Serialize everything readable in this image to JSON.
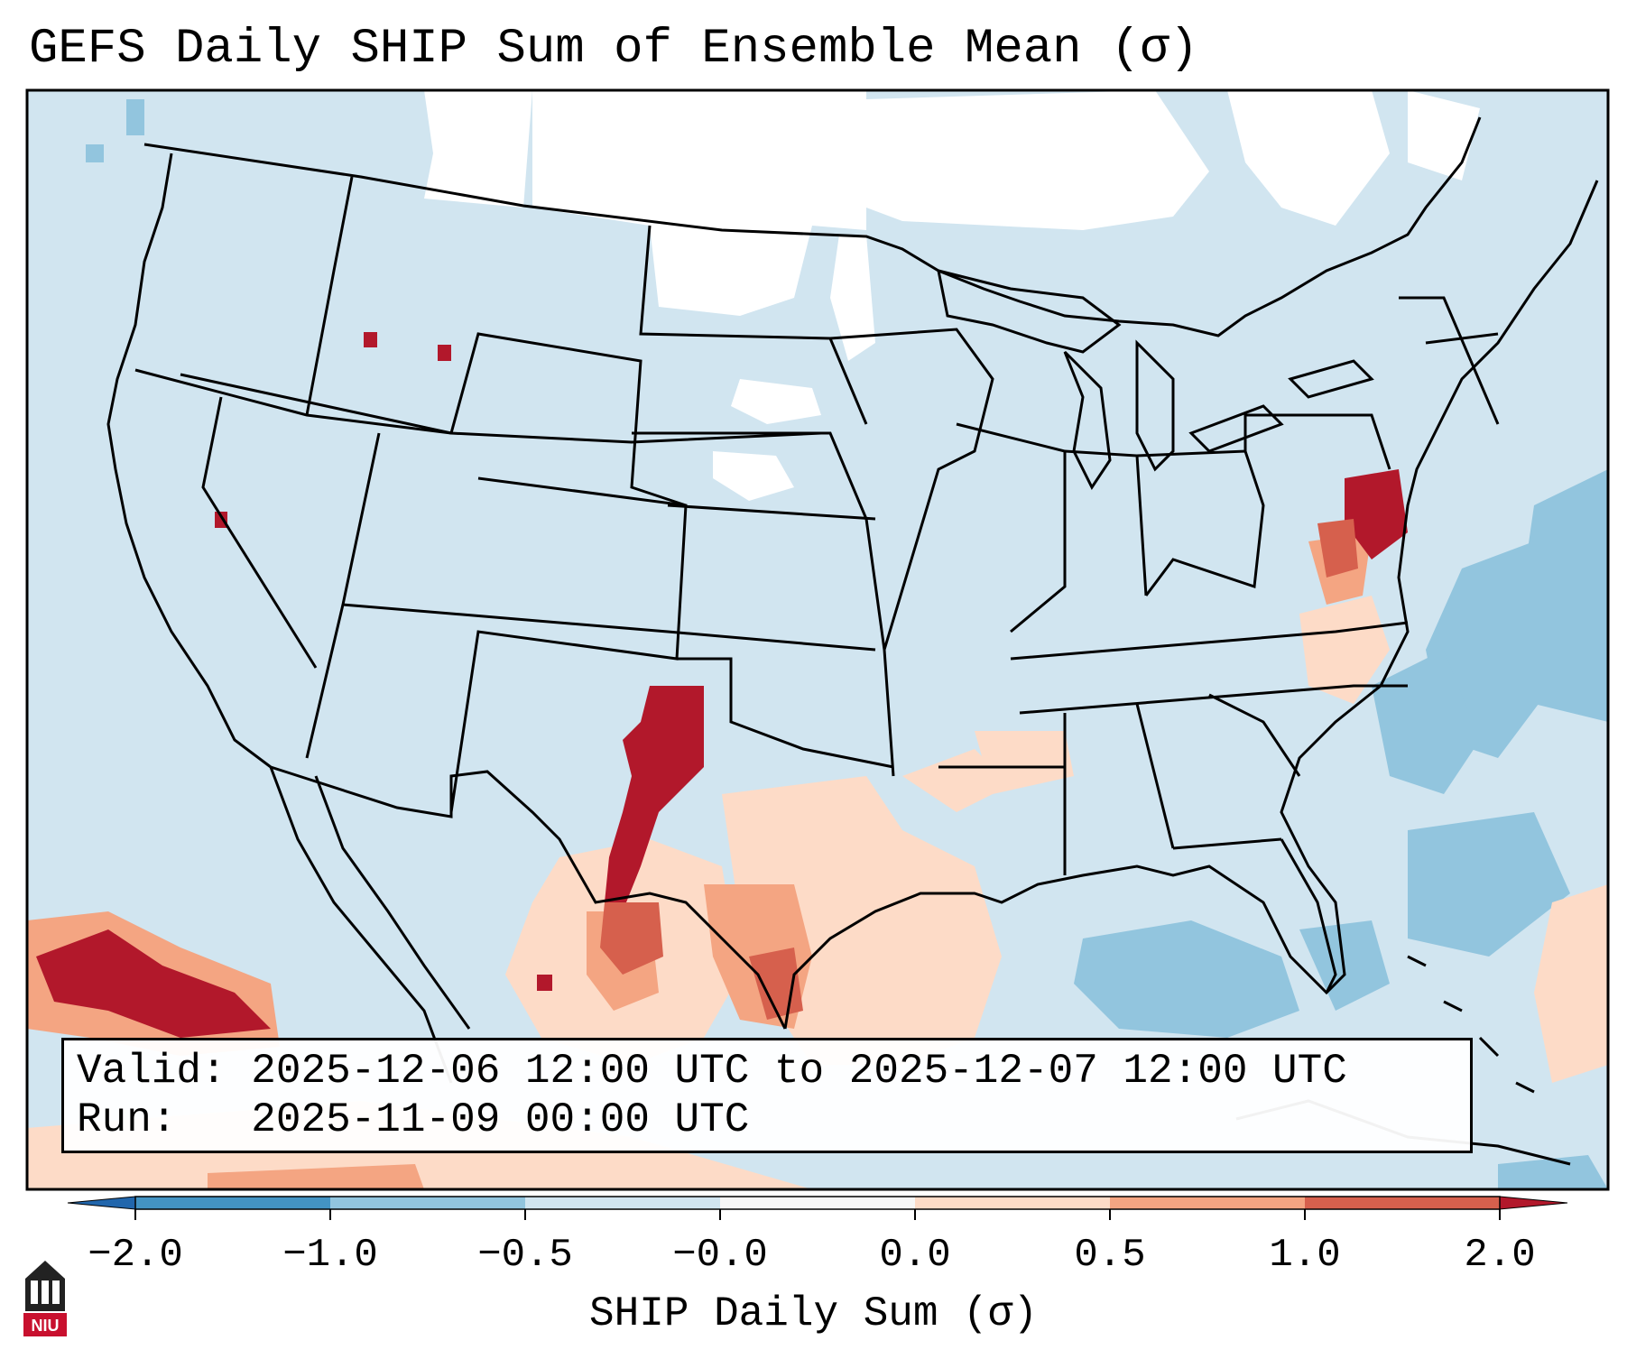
{
  "title": "GEFS Daily SHIP Sum of Ensemble Mean (σ)",
  "info_box": {
    "valid_label": "Valid:",
    "valid_value": "2025-12-06 12:00 UTC to 2025-12-07 12:00 UTC",
    "run_label": "Run:",
    "run_value": "2025-11-09 00:00 UTC"
  },
  "colorbar": {
    "label": "SHIP Daily Sum (σ)",
    "ticks": [
      "−2.0",
      "−1.0",
      "−0.5",
      "−0.0",
      "0.0",
      "0.5",
      "1.0",
      "2.0"
    ],
    "colors": [
      "#4393c3",
      "#92c5de",
      "#d1e5f0",
      "#f7f7f7",
      "#fddbc7",
      "#f4a582",
      "#d6604d",
      "#b2182b"
    ],
    "extend_low_color": "#2166ac",
    "extend_high_color": "#b2182b"
  },
  "map": {
    "background_color": "#d1e5f0",
    "coast_color": "#000000",
    "region": "Contiguous United States"
  },
  "logo_text": "NIU"
}
